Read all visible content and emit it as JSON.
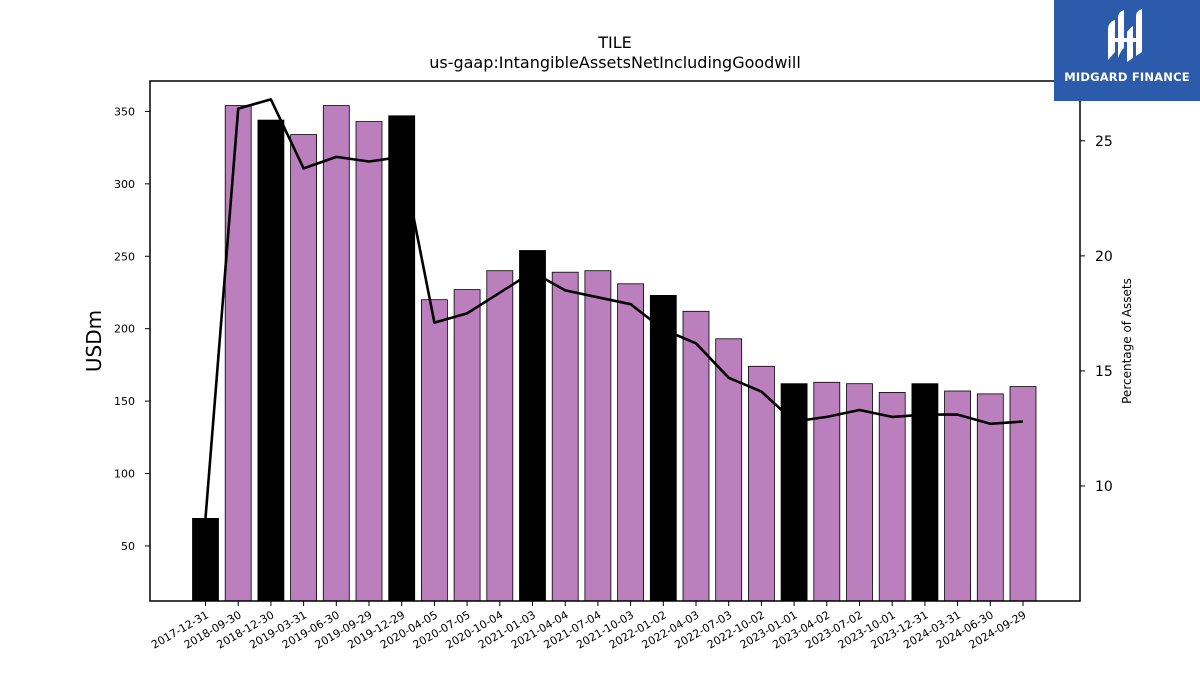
{
  "chart_data": {
    "type": "bar",
    "title": "TILE",
    "subtitle": "us-gaap:IntangibleAssetsNetIncludingGoodwill",
    "ylabel": "USDm",
    "y2label": "Percentage of Assets",
    "ylim": [
      12,
      371
    ],
    "y2lim": [
      5,
      27.6
    ],
    "yticks": [
      50,
      100,
      150,
      200,
      250,
      300,
      350
    ],
    "y2ticks": [
      10,
      15,
      20,
      25
    ],
    "categories": [
      "2017-12-31",
      "2018-09-30",
      "2018-12-30",
      "2019-03-31",
      "2019-06-30",
      "2019-09-29",
      "2019-12-29",
      "2020-04-05",
      "2020-07-05",
      "2020-10-04",
      "2021-01-03",
      "2021-04-04",
      "2021-07-04",
      "2021-10-03",
      "2022-01-02",
      "2022-04-03",
      "2022-07-03",
      "2022-10-02",
      "2023-01-01",
      "2023-04-02",
      "2023-07-02",
      "2023-10-01",
      "2023-12-31",
      "2024-03-31",
      "2024-06-30",
      "2024-09-29"
    ],
    "series": [
      {
        "type": "bar",
        "values": [
          69,
          354,
          344,
          334,
          354,
          343,
          347,
          220,
          227,
          240,
          254,
          239,
          240,
          231,
          223,
          212,
          193,
          174,
          162,
          163,
          162,
          156,
          162,
          157,
          155,
          160
        ],
        "bar_colors": [
          "#000000",
          "#bb7fbd",
          "#000000",
          "#bb7fbd",
          "#bb7fbd",
          "#bb7fbd",
          "#000000",
          "#bb7fbd",
          "#bb7fbd",
          "#bb7fbd",
          "#000000",
          "#bb7fbd",
          "#bb7fbd",
          "#bb7fbd",
          "#000000",
          "#bb7fbd",
          "#bb7fbd",
          "#bb7fbd",
          "#000000",
          "#bb7fbd",
          "#bb7fbd",
          "#bb7fbd",
          "#000000",
          "#bb7fbd",
          "#bb7fbd",
          "#bb7fbd"
        ]
      },
      {
        "type": "line",
        "axis": "right",
        "color": "#000000",
        "values": [
          8.6,
          26.4,
          26.8,
          23.8,
          24.3,
          24.1,
          24.3,
          17.1,
          17.5,
          18.4,
          19.3,
          18.5,
          18.2,
          17.9,
          16.8,
          16.2,
          14.7,
          14.1,
          12.8,
          13.0,
          13.3,
          13.0,
          13.1,
          13.1,
          12.7,
          12.8
        ]
      }
    ],
    "grid": false,
    "legend": "none"
  },
  "logo": {
    "text": "MIDGARD FINANCE",
    "background": "#2d5bab"
  }
}
